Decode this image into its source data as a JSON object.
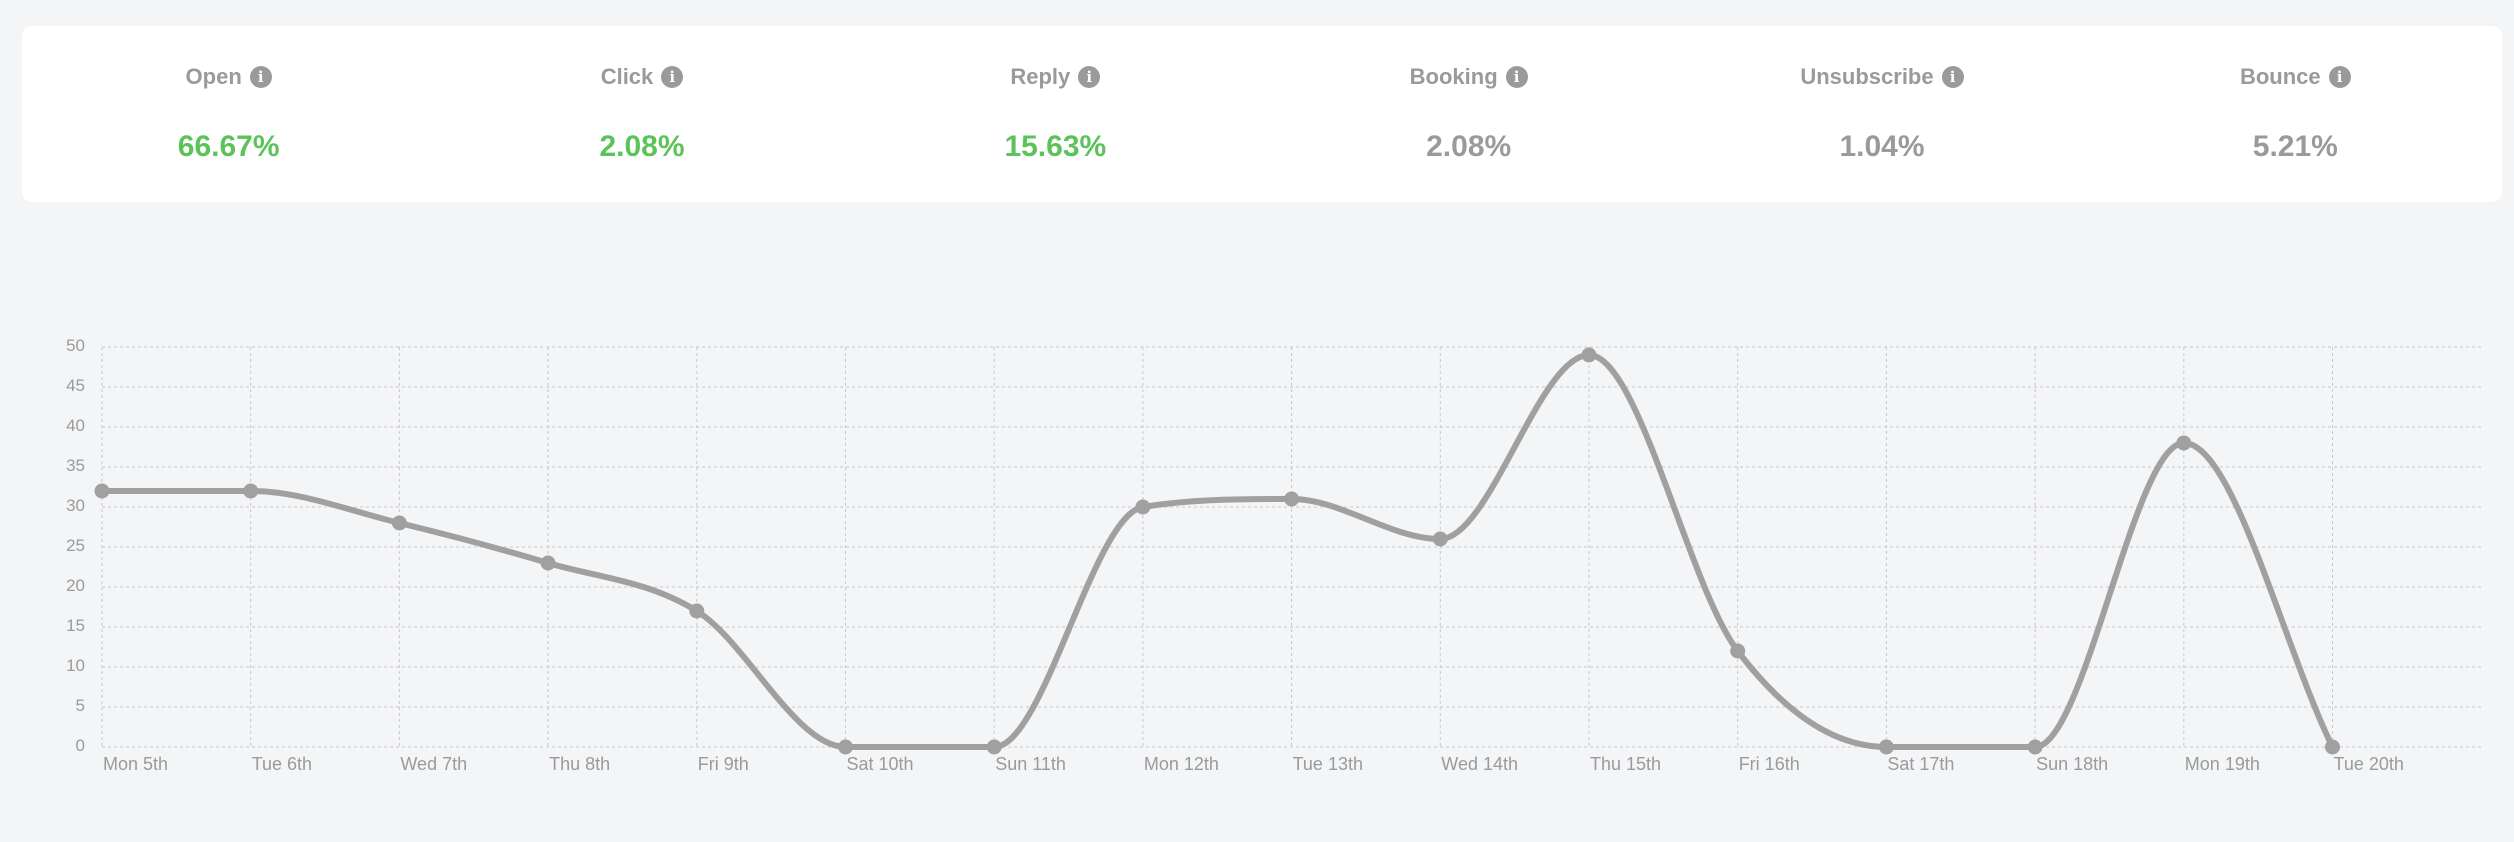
{
  "colors": {
    "positive": "#5cc35a",
    "neutral": "#9a9a9a",
    "line": "#a0a0a0",
    "grid": "#c8c8c8"
  },
  "stats": [
    {
      "label": "Open",
      "value": "66.67%",
      "tone": "positive",
      "icon": "info-icon"
    },
    {
      "label": "Click",
      "value": "2.08%",
      "tone": "positive",
      "icon": "info-icon"
    },
    {
      "label": "Reply",
      "value": "15.63%",
      "tone": "positive",
      "icon": "info-icon"
    },
    {
      "label": "Booking",
      "value": "2.08%",
      "tone": "neutral",
      "icon": "info-icon"
    },
    {
      "label": "Unsubscribe",
      "value": "1.04%",
      "tone": "neutral",
      "icon": "info-icon"
    },
    {
      "label": "Bounce",
      "value": "5.21%",
      "tone": "neutral",
      "icon": "info-icon"
    }
  ],
  "chart_data": {
    "type": "line",
    "title": "",
    "xlabel": "",
    "ylabel": "",
    "ylim": [
      0,
      50
    ],
    "yticks": [
      0,
      5,
      10,
      15,
      20,
      25,
      30,
      35,
      40,
      45,
      50
    ],
    "grid": true,
    "legend": "none",
    "categories": [
      "Mon 5th",
      "Tue 6th",
      "Wed 7th",
      "Thu 8th",
      "Fri 9th",
      "Sat 10th",
      "Sun 11th",
      "Mon 12th",
      "Tue 13th",
      "Wed 14th",
      "Thu 15th",
      "Fri 16th",
      "Sat 17th",
      "Sun 18th",
      "Mon 19th",
      "Tue 20th"
    ],
    "series": [
      {
        "values": [
          32,
          32,
          28,
          23,
          17,
          0,
          0,
          30,
          31,
          26,
          49,
          12,
          0,
          0,
          38,
          0
        ]
      }
    ]
  }
}
